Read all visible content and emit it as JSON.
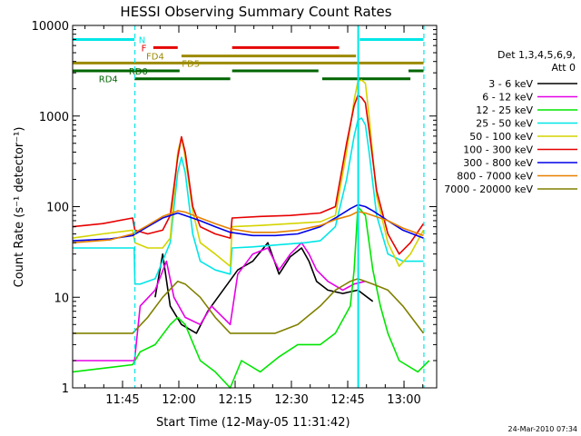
{
  "chart_data": {
    "type": "line",
    "title": "HESSI Observing Summary Count Rates",
    "xlabel": "Start Time (12-May-05 11:31:42)",
    "ylabel": "Count Rate (s⁻¹ detector⁻¹)",
    "y_scale": "log",
    "ylim": [
      1,
      10000
    ],
    "xlim_minutes": [
      0,
      97
    ],
    "grid": false,
    "legend_placement": "right",
    "legend_header": [
      "Det 1,3,4,5,6,9,",
      "Att 0"
    ],
    "footer_date": "24-Mar-2010 07:34",
    "y_ticks": [
      {
        "value": 1,
        "label": "1"
      },
      {
        "value": 10,
        "label": "10"
      },
      {
        "value": 100,
        "label": "100"
      },
      {
        "value": 1000,
        "label": "1000"
      },
      {
        "value": 10000,
        "label": "10000"
      }
    ],
    "x_ticks": [
      {
        "value": 13.3,
        "label": "11:45"
      },
      {
        "value": 28.3,
        "label": "12:00"
      },
      {
        "value": 43.3,
        "label": "12:15"
      },
      {
        "value": 58.3,
        "label": "12:30"
      },
      {
        "value": 73.3,
        "label": "12:45"
      },
      {
        "value": 88.3,
        "label": "13:00"
      }
    ],
    "flags": [
      {
        "label": "N",
        "color": "#00e6e6",
        "y": 7000,
        "label_x": 18.5,
        "segments": [
          [
            0,
            16.5
          ],
          [
            76.5,
            93.5
          ]
        ]
      },
      {
        "label": "F",
        "color": "#e60000",
        "y": 5700,
        "label_x": 19,
        "segments": [
          [
            21.5,
            28
          ],
          [
            42.5,
            71
          ]
        ]
      },
      {
        "label": "FD4",
        "color": "#9b8a00",
        "y": 4600,
        "label_x": 22,
        "segments": [
          [
            29,
            75.5
          ]
        ]
      },
      {
        "label": "FD5",
        "color": "#9b8a00",
        "y": 3850,
        "label_x": 31.5,
        "segments": [
          [
            0,
            93.5
          ]
        ]
      },
      {
        "label": "RD0",
        "color": "#006400",
        "y": 3150,
        "label_x": 17.5,
        "segments": [
          [
            0,
            28.5
          ],
          [
            42.5,
            65.5
          ],
          [
            89.5,
            93.5
          ]
        ]
      },
      {
        "label": "RD4",
        "color": "#006400",
        "y": 2580,
        "label_x": 9.5,
        "segments": [
          [
            16.5,
            42
          ],
          [
            66.5,
            90
          ]
        ]
      }
    ],
    "vlines": [
      {
        "x": 16.6,
        "color": "#00e6e6",
        "style": "dashed"
      },
      {
        "x": 76.1,
        "color": "#00e6e6",
        "style": "solid"
      },
      {
        "x": 93.6,
        "color": "#00e6e6",
        "style": "dashed"
      }
    ],
    "series": [
      {
        "name": "3 - 6 keV",
        "color": "#000000",
        "points": [
          [
            22,
            10
          ],
          [
            24,
            30
          ],
          [
            26,
            8
          ],
          [
            29,
            5
          ],
          [
            33,
            4
          ],
          [
            36,
            7
          ],
          [
            44,
            20
          ],
          [
            48,
            25
          ],
          [
            52,
            40
          ],
          [
            55,
            18
          ],
          [
            58,
            28
          ],
          [
            61,
            35
          ],
          [
            63,
            25
          ],
          [
            65,
            15
          ],
          [
            68,
            12
          ],
          [
            72,
            11
          ],
          [
            76,
            12
          ],
          [
            80,
            9
          ]
        ]
      },
      {
        "name": "6 - 12 keV",
        "color": "#e600e6",
        "points": [
          [
            0,
            2
          ],
          [
            14,
            2
          ],
          [
            16.5,
            2
          ],
          [
            18,
            8
          ],
          [
            22,
            12
          ],
          [
            25,
            25
          ],
          [
            27,
            10
          ],
          [
            30,
            6
          ],
          [
            34,
            5
          ],
          [
            37,
            8
          ],
          [
            42,
            5
          ],
          [
            44,
            18
          ],
          [
            48,
            30
          ],
          [
            52,
            35
          ],
          [
            55,
            20
          ],
          [
            58,
            30
          ],
          [
            61,
            40
          ],
          [
            63,
            30
          ],
          [
            65,
            20
          ],
          [
            68,
            15
          ],
          [
            72,
            12
          ],
          [
            75,
            14
          ],
          [
            78,
            15
          ]
        ]
      },
      {
        "name": "12 - 25 keV",
        "color": "#00e600",
        "points": [
          [
            0,
            1.5
          ],
          [
            16,
            1.8
          ],
          [
            18,
            2.5
          ],
          [
            22,
            3
          ],
          [
            26,
            5
          ],
          [
            28,
            6
          ],
          [
            30,
            5
          ],
          [
            34,
            2
          ],
          [
            38,
            1.5
          ],
          [
            42,
            1
          ],
          [
            45,
            2
          ],
          [
            50,
            1.5
          ],
          [
            55,
            2.2
          ],
          [
            60,
            3
          ],
          [
            66,
            3
          ],
          [
            70,
            4
          ],
          [
            74,
            8
          ],
          [
            75,
            20
          ],
          [
            76,
            100
          ],
          [
            78,
            80
          ],
          [
            80,
            20
          ],
          [
            82,
            8
          ],
          [
            84,
            4
          ],
          [
            87,
            2
          ],
          [
            92,
            1.5
          ],
          [
            95,
            2
          ]
        ]
      },
      {
        "name": "25 - 50 keV",
        "color": "#00e6e6",
        "points": [
          [
            0,
            35
          ],
          [
            5,
            35
          ],
          [
            10,
            35
          ],
          [
            16.4,
            35
          ],
          [
            16.6,
            14
          ],
          [
            18,
            14
          ],
          [
            22,
            16
          ],
          [
            26,
            40
          ],
          [
            28,
            240
          ],
          [
            29,
            350
          ],
          [
            30,
            240
          ],
          [
            32,
            50
          ],
          [
            34,
            25
          ],
          [
            38,
            20
          ],
          [
            42,
            18
          ],
          [
            42.5,
            35
          ],
          [
            48,
            36
          ],
          [
            55,
            38
          ],
          [
            62,
            40
          ],
          [
            66,
            42
          ],
          [
            70,
            60
          ],
          [
            73,
            200
          ],
          [
            75,
            600
          ],
          [
            76,
            900
          ],
          [
            77,
            950
          ],
          [
            78,
            800
          ],
          [
            79,
            400
          ],
          [
            81,
            80
          ],
          [
            84,
            30
          ],
          [
            88,
            25
          ],
          [
            93.5,
            25
          ]
        ]
      },
      {
        "name": "50 - 100 keV",
        "color": "#d4d400",
        "points": [
          [
            0,
            45
          ],
          [
            8,
            50
          ],
          [
            16,
            55
          ],
          [
            16.6,
            40
          ],
          [
            20,
            35
          ],
          [
            24,
            35
          ],
          [
            26,
            45
          ],
          [
            28,
            400
          ],
          [
            29,
            580
          ],
          [
            30,
            350
          ],
          [
            32,
            90
          ],
          [
            34,
            40
          ],
          [
            38,
            30
          ],
          [
            42,
            22
          ],
          [
            42.5,
            60
          ],
          [
            50,
            62
          ],
          [
            58,
            65
          ],
          [
            66,
            68
          ],
          [
            70,
            80
          ],
          [
            73,
            400
          ],
          [
            75,
            1500
          ],
          [
            76,
            2400
          ],
          [
            77,
            2500
          ],
          [
            78,
            2300
          ],
          [
            79,
            1000
          ],
          [
            81,
            130
          ],
          [
            84,
            40
          ],
          [
            87,
            22
          ],
          [
            90,
            30
          ],
          [
            93.5,
            55
          ]
        ]
      },
      {
        "name": "100 - 300 keV",
        "color": "#e60000",
        "points": [
          [
            0,
            60
          ],
          [
            8,
            65
          ],
          [
            16,
            75
          ],
          [
            16.6,
            55
          ],
          [
            20,
            50
          ],
          [
            24,
            55
          ],
          [
            26,
            80
          ],
          [
            28,
            350
          ],
          [
            29,
            590
          ],
          [
            30,
            400
          ],
          [
            32,
            100
          ],
          [
            34,
            60
          ],
          [
            38,
            50
          ],
          [
            42,
            45
          ],
          [
            42.5,
            75
          ],
          [
            50,
            78
          ],
          [
            58,
            80
          ],
          [
            66,
            85
          ],
          [
            70,
            100
          ],
          [
            73,
            500
          ],
          [
            75,
            1300
          ],
          [
            76,
            1700
          ],
          [
            77,
            1600
          ],
          [
            78,
            1400
          ],
          [
            79,
            700
          ],
          [
            81,
            150
          ],
          [
            84,
            50
          ],
          [
            87,
            30
          ],
          [
            90,
            40
          ],
          [
            93.5,
            65
          ]
        ]
      },
      {
        "name": "300 - 800 keV",
        "color": "#0000e6",
        "points": [
          [
            0,
            42
          ],
          [
            10,
            44
          ],
          [
            16,
            48
          ],
          [
            20,
            60
          ],
          [
            24,
            75
          ],
          [
            28,
            85
          ],
          [
            30,
            80
          ],
          [
            34,
            70
          ],
          [
            38,
            60
          ],
          [
            42,
            52
          ],
          [
            48,
            48
          ],
          [
            54,
            48
          ],
          [
            60,
            50
          ],
          [
            66,
            60
          ],
          [
            70,
            75
          ],
          [
            74,
            95
          ],
          [
            76,
            105
          ],
          [
            78,
            100
          ],
          [
            80,
            90
          ],
          [
            84,
            70
          ],
          [
            88,
            55
          ],
          [
            93.5,
            45
          ]
        ]
      },
      {
        "name": "800 - 7000 keV",
        "color": "#e68000",
        "points": [
          [
            0,
            40
          ],
          [
            10,
            43
          ],
          [
            16,
            50
          ],
          [
            20,
            62
          ],
          [
            24,
            78
          ],
          [
            28,
            90
          ],
          [
            30,
            87
          ],
          [
            34,
            75
          ],
          [
            38,
            65
          ],
          [
            42,
            57
          ],
          [
            48,
            52
          ],
          [
            54,
            52
          ],
          [
            60,
            55
          ],
          [
            66,
            62
          ],
          [
            70,
            72
          ],
          [
            74,
            80
          ],
          [
            76,
            88
          ],
          [
            78,
            85
          ],
          [
            80,
            80
          ],
          [
            84,
            70
          ],
          [
            88,
            58
          ],
          [
            93.5,
            48
          ]
        ]
      },
      {
        "name": "7000 - 20000 keV",
        "color": "#808000",
        "points": [
          [
            0,
            4
          ],
          [
            10,
            4
          ],
          [
            16,
            4
          ],
          [
            20,
            6
          ],
          [
            24,
            10
          ],
          [
            28,
            15
          ],
          [
            30,
            14
          ],
          [
            34,
            10
          ],
          [
            38,
            6
          ],
          [
            42,
            4
          ],
          [
            48,
            4
          ],
          [
            54,
            4
          ],
          [
            60,
            5
          ],
          [
            66,
            8
          ],
          [
            70,
            12
          ],
          [
            74,
            15
          ],
          [
            76,
            16
          ],
          [
            78,
            15
          ],
          [
            80,
            14
          ],
          [
            84,
            12
          ],
          [
            88,
            8
          ],
          [
            93.5,
            4
          ]
        ]
      }
    ]
  }
}
